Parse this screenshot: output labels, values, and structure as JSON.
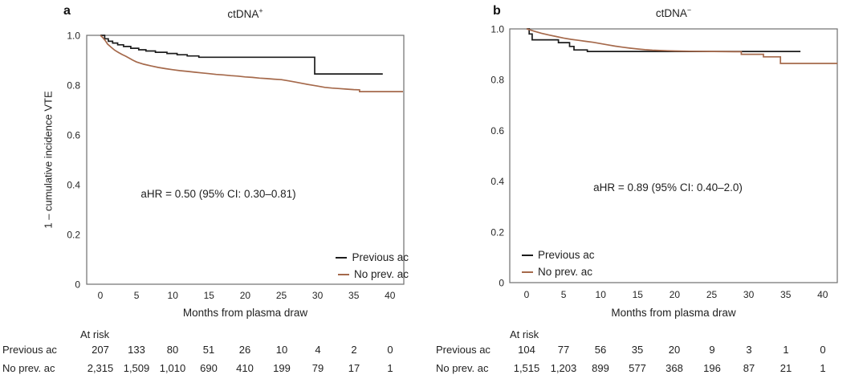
{
  "figure": {
    "panels": [
      {
        "letter": "a",
        "title": {
          "base": "ctDNA",
          "sup": "+"
        },
        "ylabel": "1 – cumulative incidence VTE",
        "xlabel": "Months from plasma draw",
        "annotation": "aHR = 0.50 (95% CI: 0.30–0.81)",
        "legend": {
          "position": "bottom-right",
          "entries": [
            {
              "label": "Previous ac",
              "color": "#1c1c1c"
            },
            {
              "label": "No prev. ac",
              "color": "#a5694b"
            }
          ]
        },
        "risk_table": {
          "header": "At risk",
          "rows": [
            {
              "label": "Previous ac",
              "values": [
                "207",
                "133",
                "80",
                "51",
                "26",
                "10",
                "4",
                "2",
                "0"
              ]
            },
            {
              "label": "No prev. ac",
              "values": [
                "2,315",
                "1,509",
                "1,010",
                "690",
                "410",
                "199",
                "79",
                "17",
                "1"
              ]
            }
          ]
        }
      },
      {
        "letter": "b",
        "title": {
          "base": "ctDNA",
          "sup": "−"
        },
        "ylabel": "",
        "xlabel": "Months from plasma draw",
        "annotation": "aHR = 0.89 (95% CI: 0.40–2.0)",
        "legend": {
          "position": "bottom-left",
          "entries": [
            {
              "label": "Previous ac",
              "color": "#1c1c1c"
            },
            {
              "label": "No prev. ac",
              "color": "#a5694b"
            }
          ]
        },
        "risk_table": {
          "header": "At risk",
          "rows": [
            {
              "label": "Previous ac",
              "values": [
                "104",
                "77",
                "56",
                "35",
                "20",
                "9",
                "3",
                "1",
                "0"
              ]
            },
            {
              "label": "No prev. ac",
              "values": [
                "1,515",
                "1,203",
                "899",
                "577",
                "368",
                "196",
                "87",
                "21",
                "1"
              ]
            }
          ]
        }
      }
    ]
  },
  "chart_data": [
    {
      "type": "line",
      "subtype": "kaplan-meier",
      "title": "ctDNA+",
      "xlabel": "Months from plasma draw",
      "ylabel": "1 - cumulative incidence VTE",
      "annotation": "aHR = 0.50 (95% CI: 0.30–0.81)",
      "xlim": [
        -1.9,
        41.9
      ],
      "ylim": [
        0,
        1.0
      ],
      "grid": false,
      "legend_position": "bottom-right",
      "frame_color": "#6f6f6f",
      "xticks": [
        0,
        5,
        10,
        15,
        20,
        25,
        30,
        35,
        40
      ],
      "yticks": [
        {
          "value": 1.0,
          "label": "1.0"
        },
        {
          "value": 0.8,
          "label": "0.8"
        },
        {
          "value": 0.6,
          "label": "0.6"
        },
        {
          "value": 0.4,
          "label": "0.4"
        },
        {
          "value": 0.2,
          "label": "0.2"
        },
        {
          "value": 0.0,
          "label": "0"
        }
      ],
      "series": [
        {
          "name": "Previous ac",
          "color": "#1c1c1c",
          "step": true,
          "points": [
            [
              0,
              1.0
            ],
            [
              0.6,
              0.986
            ],
            [
              1.1,
              0.976
            ],
            [
              1.7,
              0.969
            ],
            [
              2.4,
              0.962
            ],
            [
              3.2,
              0.955
            ],
            [
              4.2,
              0.948
            ],
            [
              5.3,
              0.942
            ],
            [
              6.3,
              0.937
            ],
            [
              7.6,
              0.932
            ],
            [
              9.2,
              0.927
            ],
            [
              10.6,
              0.922
            ],
            [
              12,
              0.917
            ],
            [
              13.6,
              0.912
            ],
            [
              29.6,
              0.845
            ],
            [
              39,
              0.845
            ]
          ]
        },
        {
          "name": "No prev. ac",
          "color": "#a5694b",
          "step": false,
          "points": [
            [
              0,
              1.0
            ],
            [
              0.3,
              0.992
            ],
            [
              0.7,
              0.978
            ],
            [
              1,
              0.965
            ],
            [
              1.5,
              0.952
            ],
            [
              2,
              0.94
            ],
            [
              2.5,
              0.931
            ],
            [
              3,
              0.923
            ],
            [
              3.5,
              0.916
            ],
            [
              4,
              0.908
            ],
            [
              4.5,
              0.9
            ],
            [
              5,
              0.893
            ],
            [
              6,
              0.884
            ],
            [
              7,
              0.877
            ],
            [
              8,
              0.871
            ],
            [
              9,
              0.866
            ],
            [
              10,
              0.862
            ],
            [
              11,
              0.858
            ],
            [
              12,
              0.855
            ],
            [
              13,
              0.852
            ],
            [
              14,
              0.849
            ],
            [
              15,
              0.846
            ],
            [
              16,
              0.843
            ],
            [
              17,
              0.841
            ],
            [
              18,
              0.838
            ],
            [
              19,
              0.836
            ],
            [
              20,
              0.833
            ],
            [
              21,
              0.831
            ],
            [
              22,
              0.828
            ],
            [
              23,
              0.826
            ],
            [
              24,
              0.824
            ],
            [
              25,
              0.822
            ],
            [
              26,
              0.817
            ],
            [
              27,
              0.812
            ],
            [
              28,
              0.806
            ],
            [
              29,
              0.801
            ],
            [
              30,
              0.796
            ],
            [
              31,
              0.791
            ],
            [
              32,
              0.788
            ],
            [
              33,
              0.786
            ],
            [
              34,
              0.784
            ],
            [
              35,
              0.782
            ],
            [
              35.8,
              0.781
            ],
            [
              35.8,
              0.774
            ],
            [
              41.8,
              0.774
            ]
          ]
        }
      ]
    },
    {
      "type": "line",
      "subtype": "kaplan-meier",
      "title": "ctDNA−",
      "xlabel": "Months from plasma draw",
      "ylabel": "1 - cumulative incidence VTE",
      "annotation": "aHR = 0.89 (95% CI: 0.40–2.0)",
      "xlim": [
        -2.2,
        42
      ],
      "ylim": [
        0,
        1.0
      ],
      "grid": false,
      "legend_position": "bottom-left",
      "frame_color": "#6f6f6f",
      "xticks": [
        0,
        5,
        10,
        15,
        20,
        25,
        30,
        35,
        40
      ],
      "yticks": [
        {
          "value": 1.0,
          "label": "1.0"
        },
        {
          "value": 0.8,
          "label": "0.8"
        },
        {
          "value": 0.6,
          "label": "0.6"
        },
        {
          "value": 0.4,
          "label": "0.4"
        },
        {
          "value": 0.2,
          "label": "0.2"
        },
        {
          "value": 0.0,
          "label": "0"
        }
      ],
      "series": [
        {
          "name": "Previous ac",
          "color": "#1c1c1c",
          "step": true,
          "points": [
            [
              0,
              1.0
            ],
            [
              0.35,
              0.98
            ],
            [
              0.75,
              0.957
            ],
            [
              4.3,
              0.946
            ],
            [
              5.8,
              0.931
            ],
            [
              6.4,
              0.917
            ],
            [
              8.2,
              0.911
            ],
            [
              37,
              0.911
            ]
          ]
        },
        {
          "name": "No prev. ac",
          "color": "#a5694b",
          "step": false,
          "points": [
            [
              0,
              1.0
            ],
            [
              0.5,
              0.996
            ],
            [
              1,
              0.991
            ],
            [
              2,
              0.983
            ],
            [
              3,
              0.976
            ],
            [
              4,
              0.97
            ],
            [
              5,
              0.964
            ],
            [
              6,
              0.959
            ],
            [
              7,
              0.955
            ],
            [
              8,
              0.951
            ],
            [
              9,
              0.947
            ],
            [
              10,
              0.942
            ],
            [
              11,
              0.937
            ],
            [
              12,
              0.932
            ],
            [
              13,
              0.928
            ],
            [
              14,
              0.924
            ],
            [
              15,
              0.921
            ],
            [
              16,
              0.918
            ],
            [
              17,
              0.916
            ],
            [
              18,
              0.915
            ],
            [
              19,
              0.914
            ],
            [
              20,
              0.913
            ],
            [
              22,
              0.912
            ],
            [
              25,
              0.911
            ],
            [
              28,
              0.91
            ],
            [
              29,
              0.91
            ],
            [
              29,
              0.9
            ],
            [
              32,
              0.9
            ],
            [
              32,
              0.89
            ],
            [
              34.3,
              0.89
            ],
            [
              34.3,
              0.864
            ],
            [
              42,
              0.864
            ]
          ]
        }
      ]
    }
  ]
}
